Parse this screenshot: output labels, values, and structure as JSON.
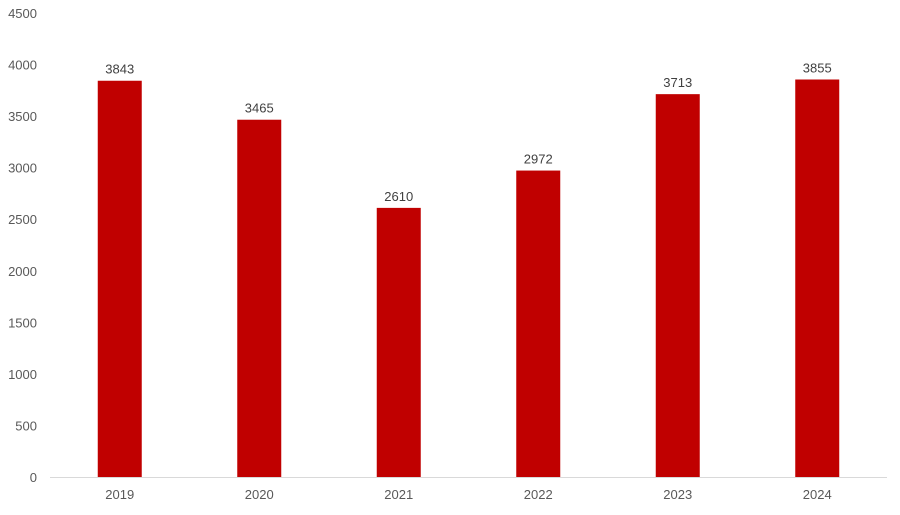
{
  "chart_data": {
    "type": "bar",
    "title": "",
    "xlabel": "",
    "ylabel": "",
    "categories": [
      "2019",
      "2020",
      "2021",
      "2022",
      "2023",
      "2024"
    ],
    "values": [
      3843,
      3465,
      2610,
      2972,
      3713,
      3855
    ],
    "data_labels": [
      "3843",
      "3465",
      "2610",
      "2972",
      "3713",
      "3855"
    ],
    "ylim": [
      0,
      4500
    ],
    "y_ticks": [
      0,
      500,
      1000,
      1500,
      2000,
      2500,
      3000,
      3500,
      4000,
      4500
    ],
    "y_tick_labels": [
      "0",
      "500",
      "1000",
      "1500",
      "2000",
      "2500",
      "3000",
      "3500",
      "4000",
      "4500"
    ],
    "grid": false,
    "legend": "none",
    "colors": {
      "bar": "#c00000",
      "axis_text": "#595959",
      "data_label": "#404040",
      "baseline": "#d9d9d9"
    }
  }
}
